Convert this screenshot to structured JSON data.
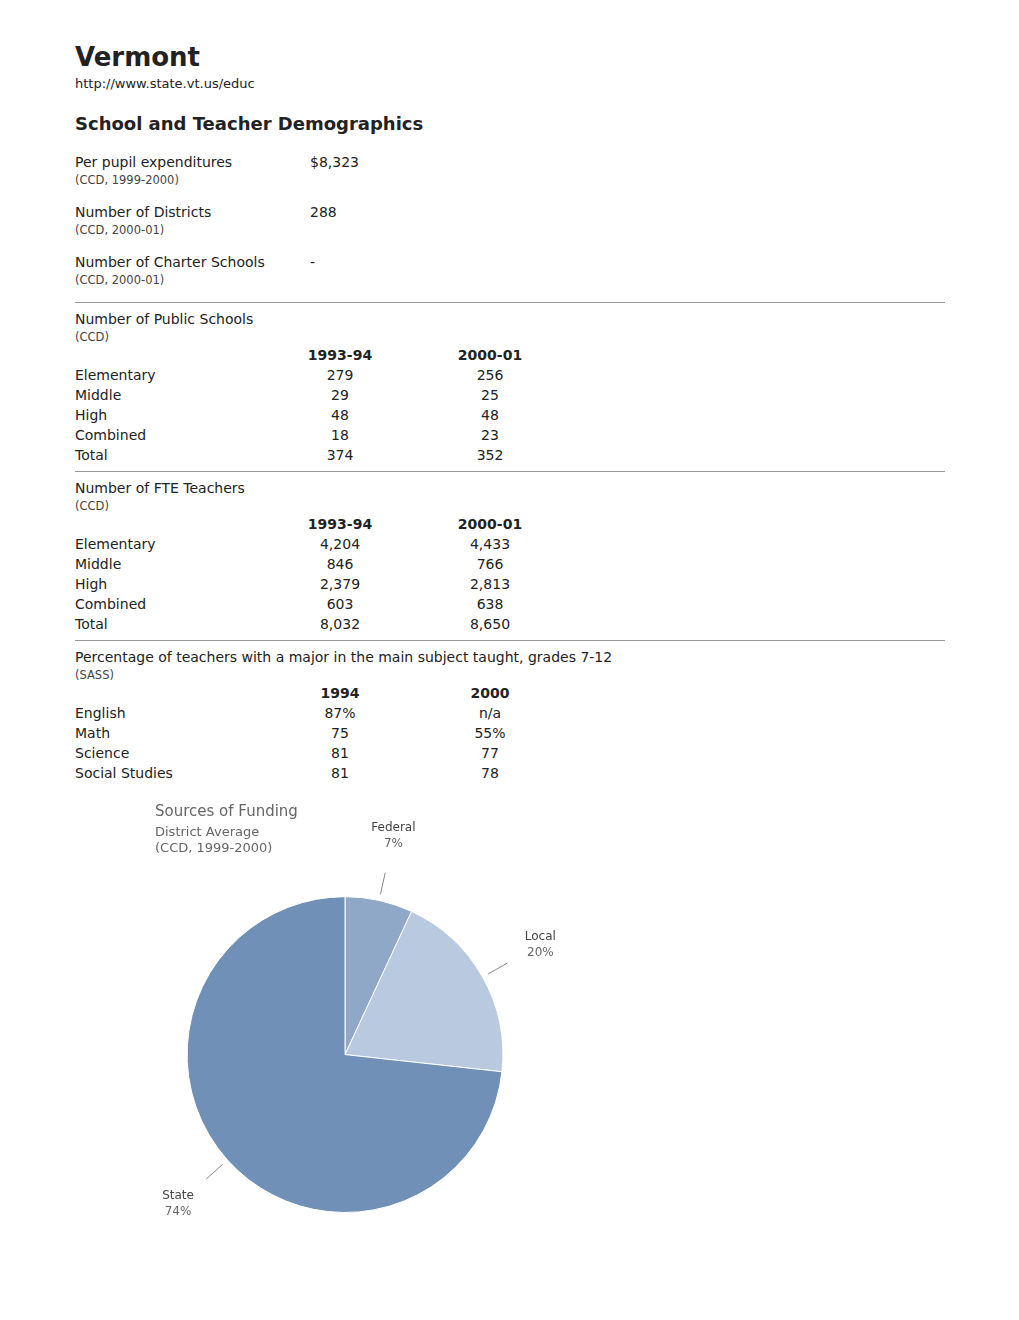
{
  "chart_data": {
    "type": "pie",
    "title": "Sources of Funding",
    "subtitle": [
      "District Average",
      "(CCD, 1999-2000)"
    ],
    "categories": [
      "Federal",
      "Local",
      "State"
    ],
    "values": [
      7,
      20,
      74
    ],
    "value_labels": [
      "7%",
      "20%",
      "74%"
    ],
    "colors": [
      "#8fa8c8",
      "#b8c9e0",
      "#7090b8"
    ],
    "data_labels": true,
    "legend": false,
    "annotations": [
      [
        "Vermont"
      ],
      [
        "http://www.state.vt.us/educ"
      ],
      [
        "School and Teacher Demographics"
      ],
      [
        "Per pupil expenditures",
        "$8,323"
      ],
      [
        "(CCD, 1999-2000)"
      ],
      [
        "Number of Districts",
        "288"
      ],
      [
        "(CCD, 2000-01)"
      ],
      [
        "Number of Charter Schools",
        "-"
      ],
      [
        "(CCD, 2000-01)"
      ],
      [
        "Number of Public Schools"
      ],
      [
        "(CCD)"
      ],
      [
        null,
        "1993-94",
        "2000-01"
      ],
      [
        "Elementary",
        "279",
        "256"
      ],
      [
        "Middle",
        "29",
        "25"
      ],
      [
        "High",
        "48",
        "48"
      ],
      [
        "Combined",
        "18",
        "23"
      ],
      [
        "Total",
        "374",
        "352"
      ],
      [
        "Number of FTE Teachers"
      ],
      [
        "(CCD)"
      ],
      [
        null,
        "1993-94",
        "2000-01"
      ],
      [
        "Elementary",
        "4,204",
        "4,433"
      ],
      [
        "Middle",
        "846",
        "766"
      ],
      [
        "High",
        "2,379",
        "2,813"
      ],
      [
        "Combined",
        "603",
        "638"
      ],
      [
        "Total",
        "8,032",
        "8,650"
      ],
      [
        "Percentage of teachers with a major in the main subject taught, grades 7-12"
      ],
      [
        "(SASS)"
      ],
      [
        null,
        "1994",
        "2000"
      ],
      [
        "English",
        "87%",
        "n/a"
      ],
      [
        "Math",
        "75",
        "55%"
      ],
      [
        "Science",
        "81",
        "77"
      ],
      [
        "Social Studies",
        "81",
        "78"
      ]
    ]
  }
}
